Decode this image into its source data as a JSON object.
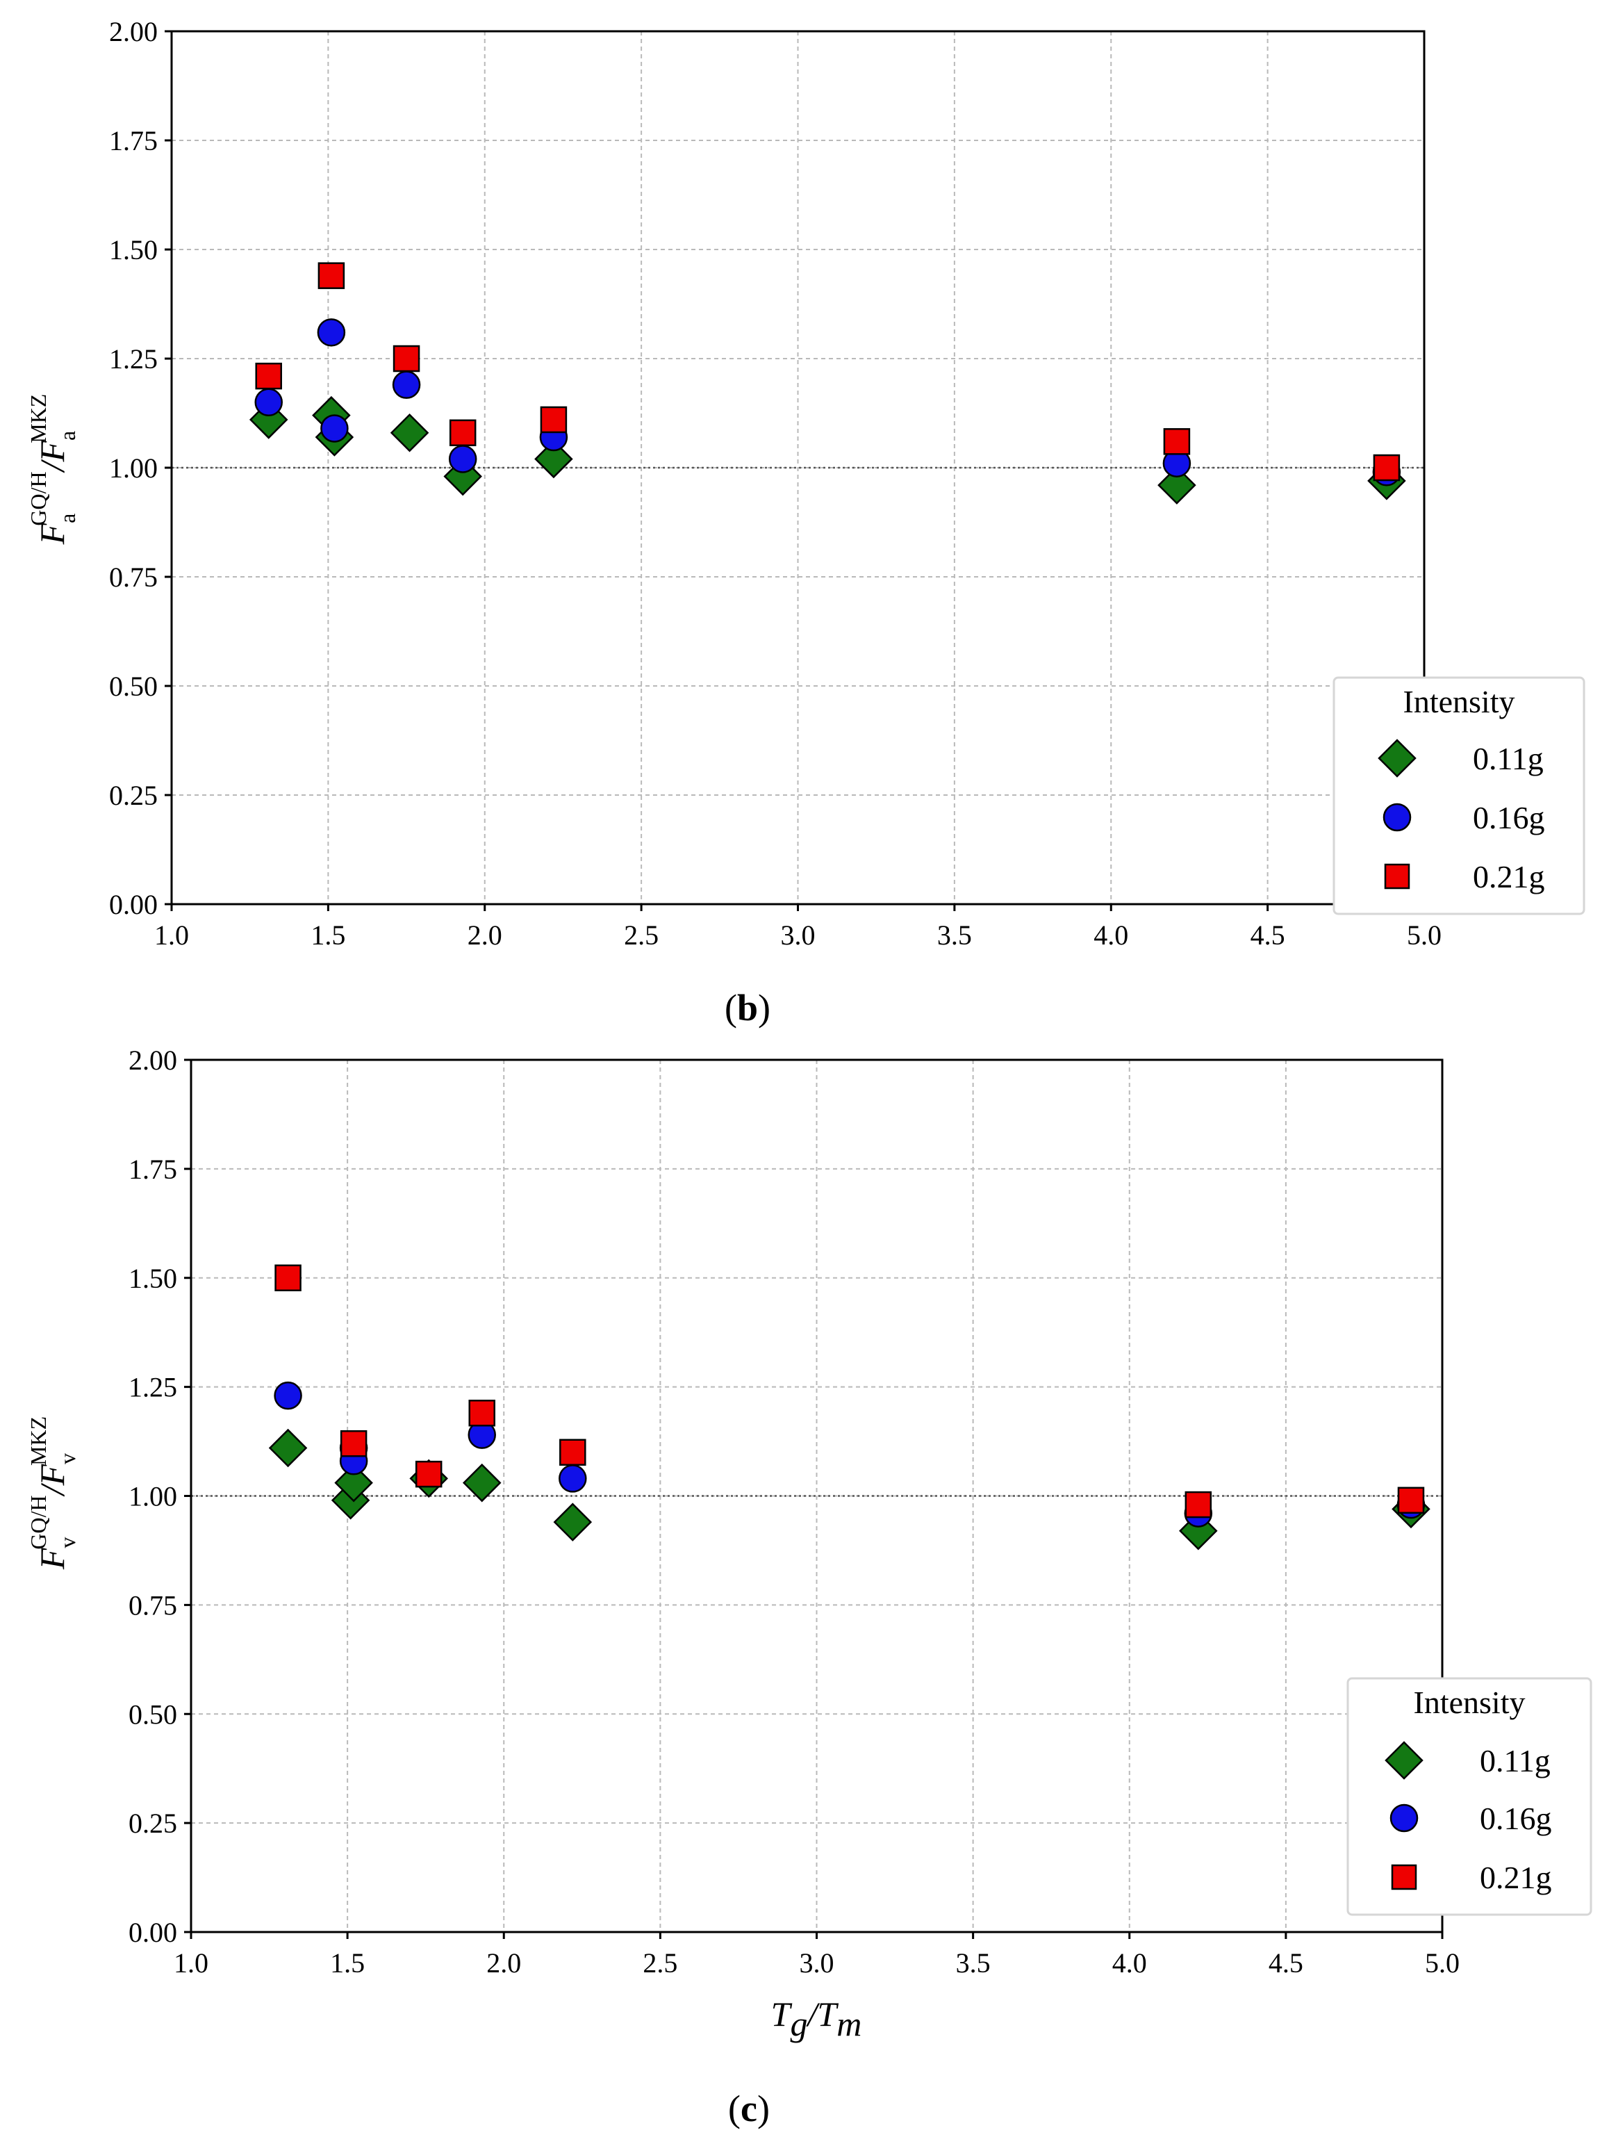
{
  "colors": {
    "0.11g": "#137813",
    "0.16g": "#1010e8",
    "0.21g": "#ee0000",
    "edge": "#000000",
    "grid": "#b9b9b9"
  },
  "chart_data": [
    {
      "type": "scatter",
      "panel_open": "(",
      "panel_letter": "b",
      "panel_close": ")",
      "xlabel": "",
      "ylabel": {
        "base1": "F",
        "sub1": "a",
        "sup1": "GQ/H",
        "slash": "/",
        "base2": "F",
        "sub2": "a",
        "sup2": "MKZ"
      },
      "xlim": [
        1.0,
        5.0
      ],
      "ylim": [
        0.0,
        2.0
      ],
      "xticks": [
        "1.0",
        "1.5",
        "2.0",
        "2.5",
        "3.0",
        "3.5",
        "4.0",
        "4.5",
        "5.0"
      ],
      "yticks": [
        "0.00",
        "0.25",
        "0.50",
        "0.75",
        "1.00",
        "1.25",
        "1.50",
        "1.75",
        "2.00"
      ],
      "grid": true,
      "legend": {
        "title": "Intensity",
        "position": "lower-right"
      },
      "series": [
        {
          "name": "0.11g",
          "marker": "diamond",
          "x": [
            1.31,
            1.51,
            1.52,
            1.76,
            1.93,
            2.22,
            4.21,
            4.88
          ],
          "y": [
            1.11,
            1.12,
            1.07,
            1.08,
            0.98,
            1.02,
            0.96,
            0.97
          ]
        },
        {
          "name": "0.16g",
          "marker": "circle",
          "x": [
            1.31,
            1.51,
            1.52,
            1.75,
            1.93,
            2.22,
            4.21,
            4.88
          ],
          "y": [
            1.15,
            1.31,
            1.09,
            1.19,
            1.02,
            1.07,
            1.01,
            0.99
          ]
        },
        {
          "name": "0.21g",
          "marker": "square",
          "x": [
            1.31,
            1.51,
            1.75,
            1.93,
            2.22,
            4.21,
            4.88
          ],
          "y": [
            1.21,
            1.44,
            1.25,
            1.08,
            1.11,
            1.06,
            1.0
          ]
        }
      ]
    },
    {
      "type": "scatter",
      "panel_open": "(",
      "panel_letter": "c",
      "panel_close": ")",
      "xlabel": {
        "base1": "T",
        "sub1": "g",
        "slash": "/",
        "base2": "T",
        "sub2": "m"
      },
      "ylabel": {
        "base1": "F",
        "sub1": "v",
        "sup1": "GQ/H",
        "slash": "/",
        "base2": "F",
        "sub2": "v",
        "sup2": "MKZ"
      },
      "xlim": [
        1.0,
        5.0
      ],
      "ylim": [
        0.0,
        2.0
      ],
      "xticks": [
        "1.0",
        "1.5",
        "2.0",
        "2.5",
        "3.0",
        "3.5",
        "4.0",
        "4.5",
        "5.0"
      ],
      "yticks": [
        "0.00",
        "0.25",
        "0.50",
        "0.75",
        "1.00",
        "1.25",
        "1.50",
        "1.75",
        "2.00"
      ],
      "grid": true,
      "legend": {
        "title": "Intensity",
        "position": "lower-right"
      },
      "series": [
        {
          "name": "0.11g",
          "marker": "diamond",
          "x": [
            1.31,
            1.51,
            1.52,
            1.76,
            1.93,
            2.22,
            4.22,
            4.9
          ],
          "y": [
            1.11,
            0.99,
            1.03,
            1.04,
            1.03,
            0.94,
            0.92,
            0.97
          ]
        },
        {
          "name": "0.16g",
          "marker": "circle",
          "x": [
            1.31,
            1.52,
            1.52,
            1.93,
            2.22,
            4.22,
            4.9
          ],
          "y": [
            1.23,
            1.11,
            1.08,
            1.14,
            1.04,
            0.96,
            0.98
          ]
        },
        {
          "name": "0.21g",
          "marker": "square",
          "x": [
            1.31,
            1.52,
            1.76,
            1.93,
            2.22,
            4.22,
            4.9
          ],
          "y": [
            1.5,
            1.12,
            1.05,
            1.19,
            1.1,
            0.98,
            0.99
          ]
        }
      ]
    }
  ]
}
